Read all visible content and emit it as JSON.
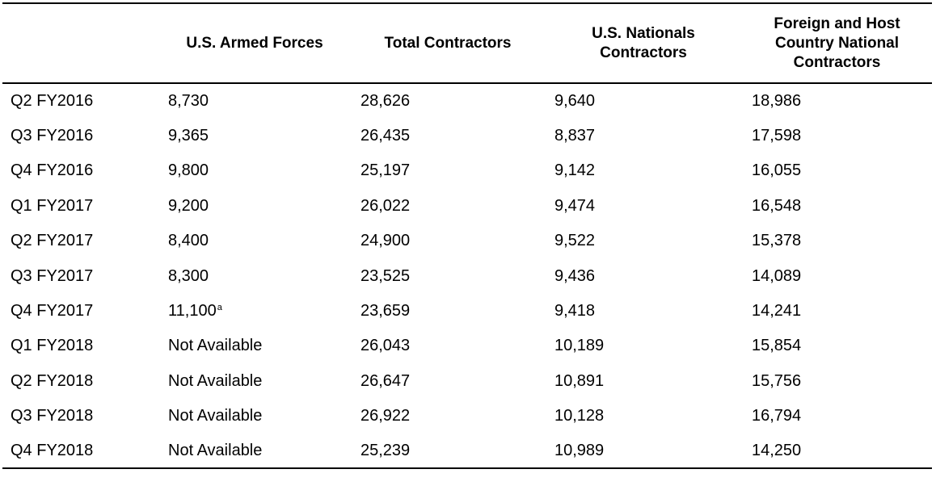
{
  "table": {
    "headers": [
      "",
      "U.S. Armed Forces",
      "Total Contractors",
      "U.S. Nationals Contractors",
      "Foreign and Host Country National Contractors"
    ],
    "rows": [
      {
        "quarter": "Q2 FY2016",
        "armed_forces": "8,730",
        "footnote": "",
        "total_contractors": "28,626",
        "us_nationals": "9,640",
        "foreign_host": "18,986"
      },
      {
        "quarter": "Q3 FY2016",
        "armed_forces": "9,365",
        "footnote": "",
        "total_contractors": "26,435",
        "us_nationals": "8,837",
        "foreign_host": "17,598"
      },
      {
        "quarter": "Q4 FY2016",
        "armed_forces": "9,800",
        "footnote": "",
        "total_contractors": "25,197",
        "us_nationals": "9,142",
        "foreign_host": "16,055"
      },
      {
        "quarter": "Q1 FY2017",
        "armed_forces": "9,200",
        "footnote": "",
        "total_contractors": "26,022",
        "us_nationals": "9,474",
        "foreign_host": "16,548"
      },
      {
        "quarter": "Q2 FY2017",
        "armed_forces": "8,400",
        "footnote": "",
        "total_contractors": "24,900",
        "us_nationals": "9,522",
        "foreign_host": "15,378"
      },
      {
        "quarter": "Q3 FY2017",
        "armed_forces": "8,300",
        "footnote": "",
        "total_contractors": "23,525",
        "us_nationals": "9,436",
        "foreign_host": "14,089"
      },
      {
        "quarter": "Q4 FY2017",
        "armed_forces": "11,100",
        "footnote": "a",
        "total_contractors": "23,659",
        "us_nationals": "9,418",
        "foreign_host": "14,241"
      },
      {
        "quarter": "Q1 FY2018",
        "armed_forces": "Not Available",
        "footnote": "",
        "total_contractors": "26,043",
        "us_nationals": "10,189",
        "foreign_host": "15,854"
      },
      {
        "quarter": "Q2 FY2018",
        "armed_forces": "Not Available",
        "footnote": "",
        "total_contractors": "26,647",
        "us_nationals": "10,891",
        "foreign_host": "15,756"
      },
      {
        "quarter": "Q3 FY2018",
        "armed_forces": "Not Available",
        "footnote": "",
        "total_contractors": "26,922",
        "us_nationals": "10,128",
        "foreign_host": "16,794"
      },
      {
        "quarter": "Q4 FY2018",
        "armed_forces": "Not Available",
        "footnote": "",
        "total_contractors": "25,239",
        "us_nationals": "10,989",
        "foreign_host": "14,250"
      }
    ]
  }
}
